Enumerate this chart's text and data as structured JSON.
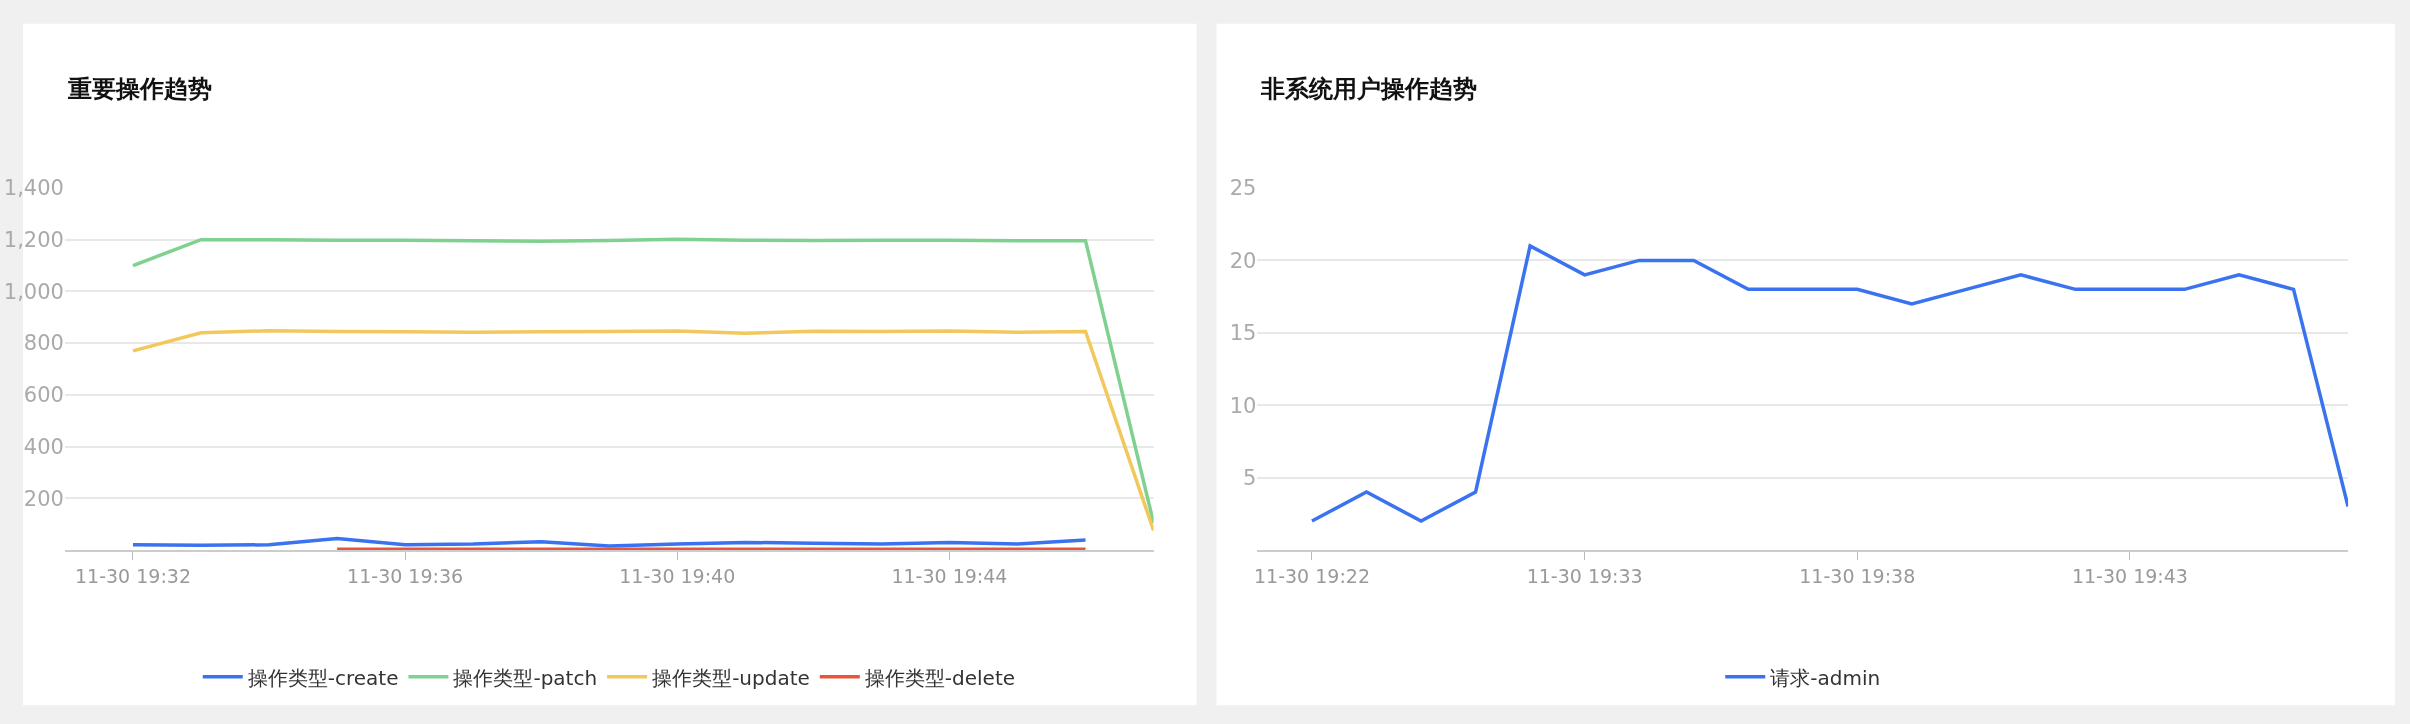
{
  "chart_data": [
    {
      "type": "line",
      "title": "重要操作趋势",
      "categories": [
        "11-30 19:32",
        null,
        null,
        null,
        "11-30 19:36",
        null,
        null,
        null,
        "11-30 19:40",
        null,
        null,
        null,
        "11-30 19:44",
        null,
        null,
        null
      ],
      "series": [
        {
          "name": "操作类型-create",
          "color": "#3a72f0",
          "values": [
            20,
            18,
            20,
            44,
            20,
            23,
            32,
            15,
            23,
            29,
            26,
            23,
            29,
            23,
            38,
            null
          ]
        },
        {
          "name": "操作类型-patch",
          "color": "#80d090",
          "values": [
            1100,
            1200,
            1200,
            1198,
            1198,
            1196,
            1194,
            1197,
            1202,
            1198,
            1197,
            1198,
            1198,
            1196,
            1196,
            105
          ]
        },
        {
          "name": "操作类型-update",
          "color": "#f2c75c",
          "values": [
            770,
            840,
            848,
            845,
            844,
            842,
            844,
            845,
            847,
            838,
            846,
            845,
            847,
            842,
            845,
            75
          ]
        },
        {
          "name": "操作类型-delete",
          "color": "#e8553f",
          "values": [
            null,
            null,
            null,
            3,
            3,
            3,
            3,
            3,
            3,
            3,
            3,
            3,
            3,
            3,
            3,
            null
          ]
        }
      ],
      "ylim": [
        0,
        1400
      ],
      "yticks": [
        {
          "value": 0,
          "label": null
        },
        200,
        400,
        600,
        800,
        {
          "value": 1000,
          "label": "1,000"
        },
        {
          "value": 1200,
          "label": "1,200"
        },
        {
          "value": 1400,
          "label": "1,400"
        }
      ],
      "grid": "y",
      "legend": "bottom",
      "marker": "none",
      "line_style": "solid"
    },
    {
      "type": "line",
      "title": "非系统用户操作趋势",
      "categories": [
        "11-30 19:22",
        null,
        null,
        null,
        null,
        "11-30 19:33",
        null,
        null,
        null,
        null,
        "11-30 19:38",
        null,
        null,
        null,
        null,
        "11-30 19:43",
        null,
        null,
        null,
        null
      ],
      "series": [
        {
          "name": "请求-admin",
          "color": "#3a72f0",
          "values": [
            2,
            4,
            2,
            4,
            21,
            19,
            20,
            20,
            18,
            18,
            18,
            17,
            18,
            19,
            18,
            18,
            18,
            19,
            18,
            3
          ]
        }
      ],
      "ylim": [
        0,
        25
      ],
      "yticks": [
        {
          "value": 0,
          "label": null
        },
        5,
        10,
        15,
        20,
        25
      ],
      "grid": "y",
      "legend": "bottom",
      "marker": "none",
      "line_style": "solid"
    }
  ]
}
